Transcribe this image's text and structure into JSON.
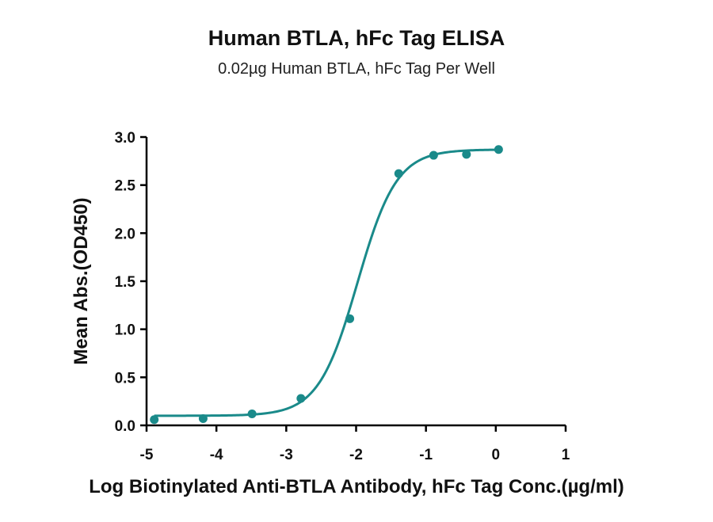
{
  "chart_data": {
    "type": "scatter",
    "title": "Human BTLA, hFc Tag ELISA",
    "subtitle": "0.02µg Human BTLA, hFc Tag Per Well",
    "xlabel": "Log Biotinylated Anti-BTLA Antibody, hFc Tag Conc.(µg/ml)",
    "ylabel": "Mean Abs.(OD450)",
    "xlim": [
      -5,
      1
    ],
    "ylim": [
      0,
      3.0
    ],
    "x_ticks": [
      "-5",
      "-4",
      "-3",
      "-2",
      "-1",
      "0",
      "1"
    ],
    "y_ticks": [
      "0.0",
      "0.5",
      "1.0",
      "1.5",
      "2.0",
      "2.5",
      "3.0"
    ],
    "grid": false,
    "legend": "none",
    "color": "#1a8a8a",
    "series": [
      {
        "x": [
          -4.89,
          -4.19,
          -3.49,
          -2.79,
          -2.09,
          -1.39,
          -0.89,
          -0.42,
          0.04
        ],
        "y": [
          0.06,
          0.07,
          0.12,
          0.28,
          1.11,
          2.62,
          2.81,
          2.82,
          2.87
        ]
      }
    ],
    "fit": {
      "model": "4PL",
      "bottom": 0.1,
      "top": 2.87,
      "logEC50": -1.98,
      "hill": 1.55,
      "x_range": [
        -4.89,
        0.04
      ]
    }
  }
}
